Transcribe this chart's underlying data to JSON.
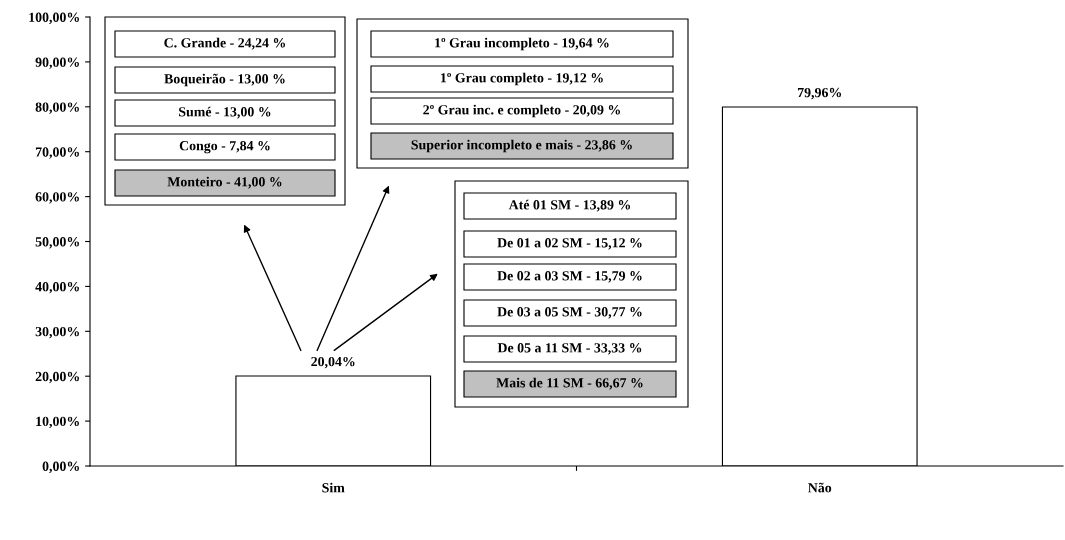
{
  "chart_data": {
    "type": "bar",
    "categories": [
      "Sim",
      "Não"
    ],
    "values": [
      20.04,
      79.96
    ],
    "color": "#ffffff",
    "value_labels": [
      "20,04%",
      "79,96%"
    ],
    "ylim": [
      0,
      100
    ],
    "yticks": [
      {
        "value": 0,
        "label": "0,00%"
      },
      {
        "value": 10,
        "label": "10,00%"
      },
      {
        "value": 20,
        "label": "20,00%"
      },
      {
        "value": 30,
        "label": "30,00%"
      },
      {
        "value": 40,
        "label": "40,00%"
      },
      {
        "value": 50,
        "label": "50,00%"
      },
      {
        "value": 60,
        "label": "60,00%"
      },
      {
        "value": 70,
        "label": "70,00%"
      },
      {
        "value": 80,
        "label": "80,00%"
      },
      {
        "value": 90,
        "label": "90,00%"
      },
      {
        "value": 100,
        "label": "100,00%"
      }
    ],
    "grid": false,
    "legend": false,
    "annotations": [
      "C. Grande - 24,24 %",
      "Boqueirão - 13,00 %",
      "Sumé - 13,00 %",
      "Congo - 7,84 %",
      "Monteiro - 41,00 %",
      "1º Grau incompleto - 19,64 %",
      "1º Grau completo - 19,12 %",
      "2º Grau inc. e completo - 20,09 %",
      "Superior incompleto e mais - 23,86 %",
      "Até 01 SM - 13,89 %",
      "De 01 a 02 SM - 15,12 %",
      "De 02 a 03 SM - 15,79 %",
      "De 03 a 05 SM - 30,77 %",
      "De 05 a 11 SM - 33,33 %",
      "Mais de 11 SM - 66,67 %"
    ]
  }
}
